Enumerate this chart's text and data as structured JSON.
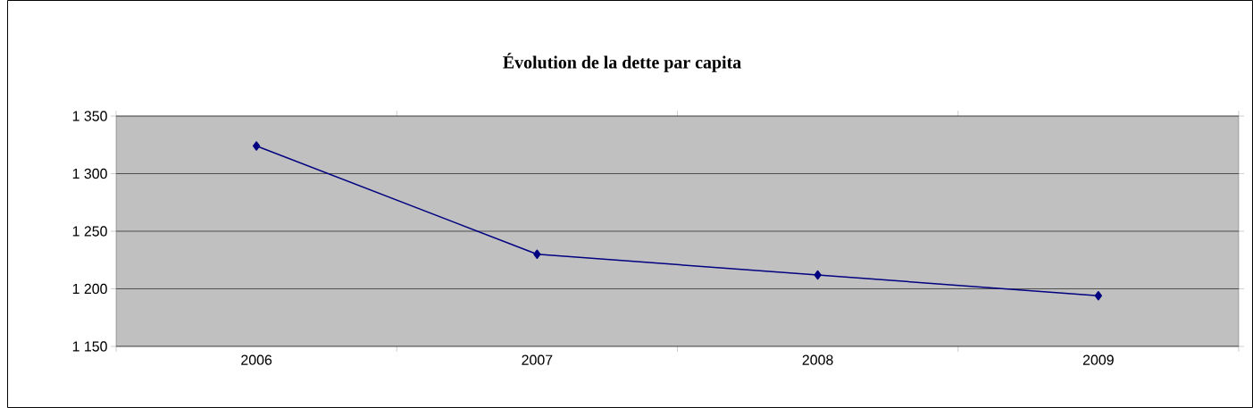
{
  "chart_data": {
    "type": "line",
    "title": "Évolution de la dette par capita",
    "categories": [
      "2006",
      "2007",
      "2008",
      "2009"
    ],
    "series": [
      {
        "color": "#000080",
        "values": [
          1324,
          1230,
          1212,
          1194
        ]
      }
    ],
    "ylim": [
      1150,
      1350
    ],
    "yticks": [
      {
        "value": 1150,
        "label": "1 150"
      },
      {
        "value": 1200,
        "label": "1 200"
      },
      {
        "value": 1250,
        "label": "1 250"
      },
      {
        "value": 1300,
        "label": "1 300"
      },
      {
        "value": 1350,
        "label": "1 350"
      }
    ],
    "grid": "y",
    "marker": "diamond",
    "line_style": "solid",
    "legend": false
  }
}
